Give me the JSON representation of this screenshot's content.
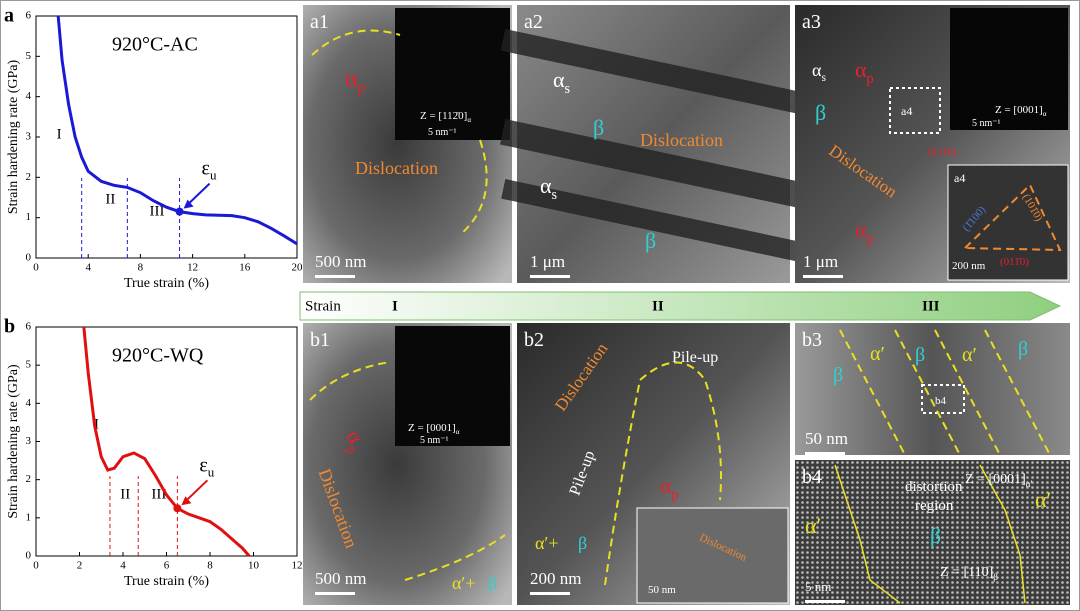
{
  "chart_data": [
    {
      "type": "line",
      "panel_label": "a",
      "annotation": "920°C-AC",
      "x_label": "True strain (%)",
      "y_label": "Strain hardening rate (GPa)",
      "xlim": [
        0,
        20
      ],
      "xticks": [
        0,
        4,
        8,
        12,
        16,
        20
      ],
      "ylim": [
        0,
        6
      ],
      "yticks": [
        0,
        1,
        2,
        3,
        4,
        5,
        6
      ],
      "x": [
        1.7,
        2,
        2.5,
        3,
        3.5,
        4,
        5,
        6,
        7,
        8,
        9,
        10,
        11,
        12,
        13,
        14,
        15,
        16,
        17,
        18,
        19,
        20
      ],
      "series": [
        {
          "color": "#1a1ad6",
          "values": [
            6,
            4.9,
            3.8,
            3.0,
            2.5,
            2.15,
            1.9,
            1.8,
            1.75,
            1.62,
            1.42,
            1.26,
            1.15,
            1.1,
            1.07,
            1.06,
            1.05,
            1.0,
            0.9,
            0.74,
            0.55,
            0.35
          ]
        }
      ],
      "stage_boundaries": [
        3.5,
        7,
        11
      ],
      "stages": [
        "I",
        "II",
        "III"
      ],
      "marker": {
        "x": 11,
        "y": 1.15,
        "symbol": "ε",
        "subscript": "u"
      }
    },
    {
      "type": "line",
      "panel_label": "b",
      "annotation": "920°C-WQ",
      "x_label": "True strain (%)",
      "y_label": "Strain hardening rate (GPa)",
      "xlim": [
        0,
        12
      ],
      "xticks": [
        0,
        2,
        4,
        6,
        8,
        10,
        12
      ],
      "ylim": [
        0,
        6
      ],
      "yticks": [
        0,
        1,
        2,
        3,
        4,
        5,
        6
      ],
      "x": [
        2.2,
        2.4,
        2.7,
        3,
        3.3,
        3.6,
        4,
        4.5,
        5,
        5.5,
        6,
        6.5,
        7,
        7.5,
        8,
        8.5,
        9,
        9.5,
        9.8
      ],
      "series": [
        {
          "color": "#e01010",
          "values": [
            6,
            4.8,
            3.4,
            2.6,
            2.25,
            2.3,
            2.6,
            2.7,
            2.55,
            2.1,
            1.6,
            1.25,
            1.1,
            1.0,
            0.9,
            0.7,
            0.45,
            0.2,
            0
          ]
        }
      ],
      "stage_boundaries": [
        3.4,
        4.7,
        6.5
      ],
      "stages": [
        "I",
        "II",
        "III"
      ],
      "marker": {
        "x": 6.5,
        "y": 1.25,
        "symbol": "ε",
        "subscript": "u"
      }
    }
  ],
  "strain_bar": {
    "label": "Strain",
    "stages": [
      "I",
      "II",
      "III"
    ]
  },
  "panels": [
    {
      "labels": [
        {
          "text": "a1"
        },
        {
          "text": "α",
          "sub": "p"
        },
        {
          "text": "Dislocation"
        },
        {
          "text": "Z = [112̄0]",
          "sub": "α"
        },
        {
          "text": "5 nm⁻¹"
        }
      ],
      "scale_bar": "500 nm"
    },
    {
      "labels": [
        {
          "text": "a2"
        },
        {
          "text": "α",
          "sub": "s"
        },
        {
          "text": "β"
        },
        {
          "text": "Dislocation"
        },
        {
          "text": "α",
          "sub": "s"
        },
        {
          "text": "β"
        }
      ],
      "scale_bar": "1 μm"
    },
    {
      "labels": [
        {
          "text": "a3"
        },
        {
          "text": "α",
          "sub": "s"
        },
        {
          "text": "α",
          "sub": "p"
        },
        {
          "text": "β"
        },
        {
          "text": "a4"
        },
        {
          "text": "Dislocation"
        },
        {
          "text": "α",
          "sub": "p"
        },
        {
          "text": "Z = [0001]",
          "sub": "α"
        },
        {
          "text": "5 nm⁻¹"
        },
        {
          "text": "(011̄0)"
        },
        {
          "text": "a4"
        },
        {
          "text": "200 nm"
        },
        {
          "text": "(1̄100)"
        },
        {
          "text": "(101̄0)"
        },
        {
          "text": "(011̄0)"
        }
      ],
      "scale_bar": "1 μm"
    },
    {
      "labels": [
        {
          "text": "b1"
        },
        {
          "text": "α",
          "sub": "p"
        },
        {
          "text": "Dislocation"
        },
        {
          "text": "α′+"
        },
        {
          "text": "β"
        },
        {
          "text": "Z = [0001]",
          "sub": "α"
        },
        {
          "text": "5 nm⁻¹"
        }
      ],
      "scale_bar": "500 nm"
    },
    {
      "labels": [
        {
          "text": "b2"
        },
        {
          "text": "Dislocation"
        },
        {
          "text": "Pile-up"
        },
        {
          "text": "Pile-up"
        },
        {
          "text": "α",
          "sub": "p"
        },
        {
          "text": "α′+"
        },
        {
          "text": "β"
        },
        {
          "text": "50 nm"
        },
        {
          "text": "Dislocation"
        }
      ],
      "scale_bar": "200 nm"
    },
    {
      "labels": [
        {
          "text": "b3"
        },
        {
          "text": "β"
        },
        {
          "text": "α′"
        },
        {
          "text": "β"
        },
        {
          "text": "α′"
        },
        {
          "text": "β"
        },
        {
          "text": "b4"
        }
      ],
      "scale_bar": "50 nm"
    },
    {
      "labels": [
        {
          "text": "b4"
        },
        {
          "text": "distortion"
        },
        {
          "text": "region"
        },
        {
          "text": "α′"
        },
        {
          "text": "β"
        },
        {
          "text": "α′"
        },
        {
          "text": "Z = [0001]",
          "sub": "α′"
        },
        {
          "text": "Z = [110]",
          "sub": "β"
        }
      ],
      "scale_bar": "5 nm"
    }
  ]
}
